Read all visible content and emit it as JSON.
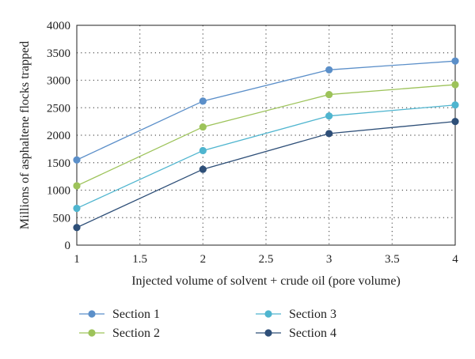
{
  "chart_data": {
    "type": "line",
    "title": "",
    "xlabel": "Injected volume of solvent + crude oil (pore volume)",
    "ylabel": "Millions of asphaltene flocks trapped",
    "xlim": [
      1,
      4
    ],
    "ylim": [
      0,
      4000
    ],
    "x_ticks": [
      "1",
      "1.5",
      "2",
      "2.5",
      "3",
      "3.5",
      "4"
    ],
    "y_ticks": [
      "0",
      "500",
      "1000",
      "1500",
      "2000",
      "2500",
      "3000",
      "3500",
      "4000"
    ],
    "grid": true,
    "legend_position": "bottom",
    "x": [
      1,
      2,
      3,
      4
    ],
    "series": [
      {
        "name": "Section 1",
        "color": "#5b8fc9",
        "values": [
          1550,
          2620,
          3190,
          3350
        ]
      },
      {
        "name": "Section 2",
        "color": "#9dc35a",
        "values": [
          1080,
          2150,
          2740,
          2920
        ]
      },
      {
        "name": "Section 3",
        "color": "#4fb5cf",
        "values": [
          670,
          1720,
          2350,
          2550
        ]
      },
      {
        "name": "Section 4",
        "color": "#2e4f78",
        "values": [
          320,
          1380,
          2030,
          2250
        ]
      }
    ]
  }
}
